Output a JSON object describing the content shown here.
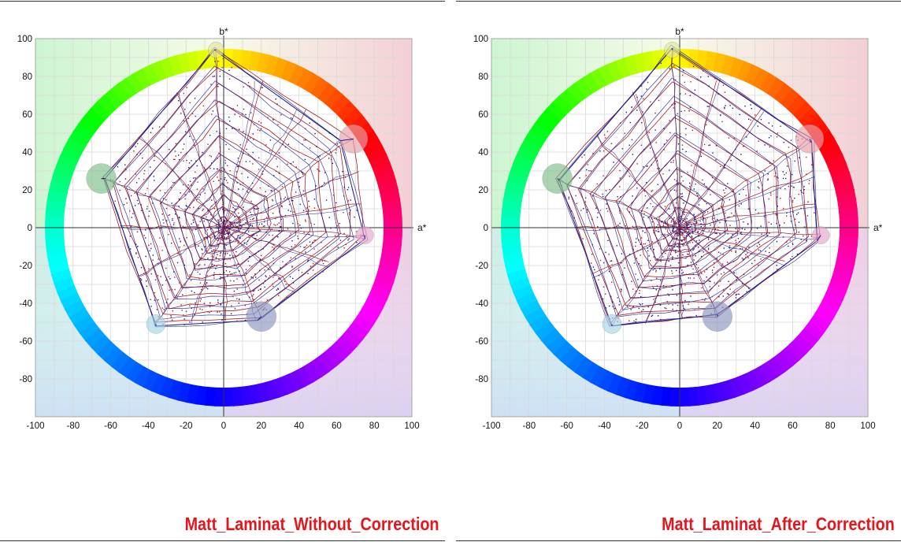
{
  "chart_data": [
    {
      "type": "scatter",
      "title": "Matt_Laminat_Without_Correction",
      "xlabel": "a*",
      "ylabel": "b*",
      "xlim": [
        -100,
        100
      ],
      "ylim": [
        -100,
        100
      ],
      "grid": true,
      "xticks": [
        -100,
        -80,
        -60,
        -40,
        -20,
        0,
        20,
        40,
        60,
        80,
        100
      ],
      "yticks": [
        100,
        80,
        60,
        40,
        20,
        0,
        -20,
        -40,
        -60,
        -80
      ],
      "targets": [
        {
          "name": "yellow",
          "a": -4,
          "b": 94
        },
        {
          "name": "red",
          "a": 69,
          "b": 47
        },
        {
          "name": "magenta",
          "a": 75,
          "b": -4
        },
        {
          "name": "blue",
          "a": 20,
          "b": -47
        },
        {
          "name": "cyan",
          "a": -36,
          "b": -51
        },
        {
          "name": "green",
          "a": -65,
          "b": 26
        }
      ],
      "measured_vertices": [
        {
          "a": -5,
          "b": 94
        },
        {
          "a": 62,
          "b": 46
        },
        {
          "a": 75,
          "b": -6
        },
        {
          "a": 18,
          "b": -49
        },
        {
          "a": -36,
          "b": -52
        },
        {
          "a": -63,
          "b": 26
        }
      ]
    },
    {
      "type": "scatter",
      "title": "Matt_Laminat_After_Correction",
      "xlabel": "a*",
      "ylabel": "b*",
      "xlim": [
        -100,
        100
      ],
      "ylim": [
        -100,
        100
      ],
      "grid": true,
      "xticks": [
        -100,
        -80,
        -60,
        -40,
        -20,
        0,
        20,
        40,
        60,
        80,
        100
      ],
      "yticks": [
        100,
        80,
        60,
        40,
        20,
        0,
        -20,
        -40,
        -60,
        -80
      ],
      "targets": [
        {
          "name": "yellow",
          "a": -4,
          "b": 94
        },
        {
          "name": "red",
          "a": 69,
          "b": 47
        },
        {
          "name": "magenta",
          "a": 75,
          "b": -4
        },
        {
          "name": "blue",
          "a": 20,
          "b": -47
        },
        {
          "name": "cyan",
          "a": -36,
          "b": -51
        },
        {
          "name": "green",
          "a": -65,
          "b": 26
        }
      ],
      "measured_vertices": [
        {
          "a": -4,
          "b": 95
        },
        {
          "a": 70,
          "b": 45
        },
        {
          "a": 73,
          "b": -7
        },
        {
          "a": 20,
          "b": -46
        },
        {
          "a": -36,
          "b": -52
        },
        {
          "a": -64,
          "b": 25
        }
      ]
    }
  ],
  "captions": [
    "Matt_Laminat_Without_Correction",
    "Matt_Laminat_After_Correction"
  ],
  "colors": {
    "caption": "#e8141c",
    "measured": "#1a1a8a",
    "reference": "#a0202a",
    "grid": "#d8d8d8"
  }
}
